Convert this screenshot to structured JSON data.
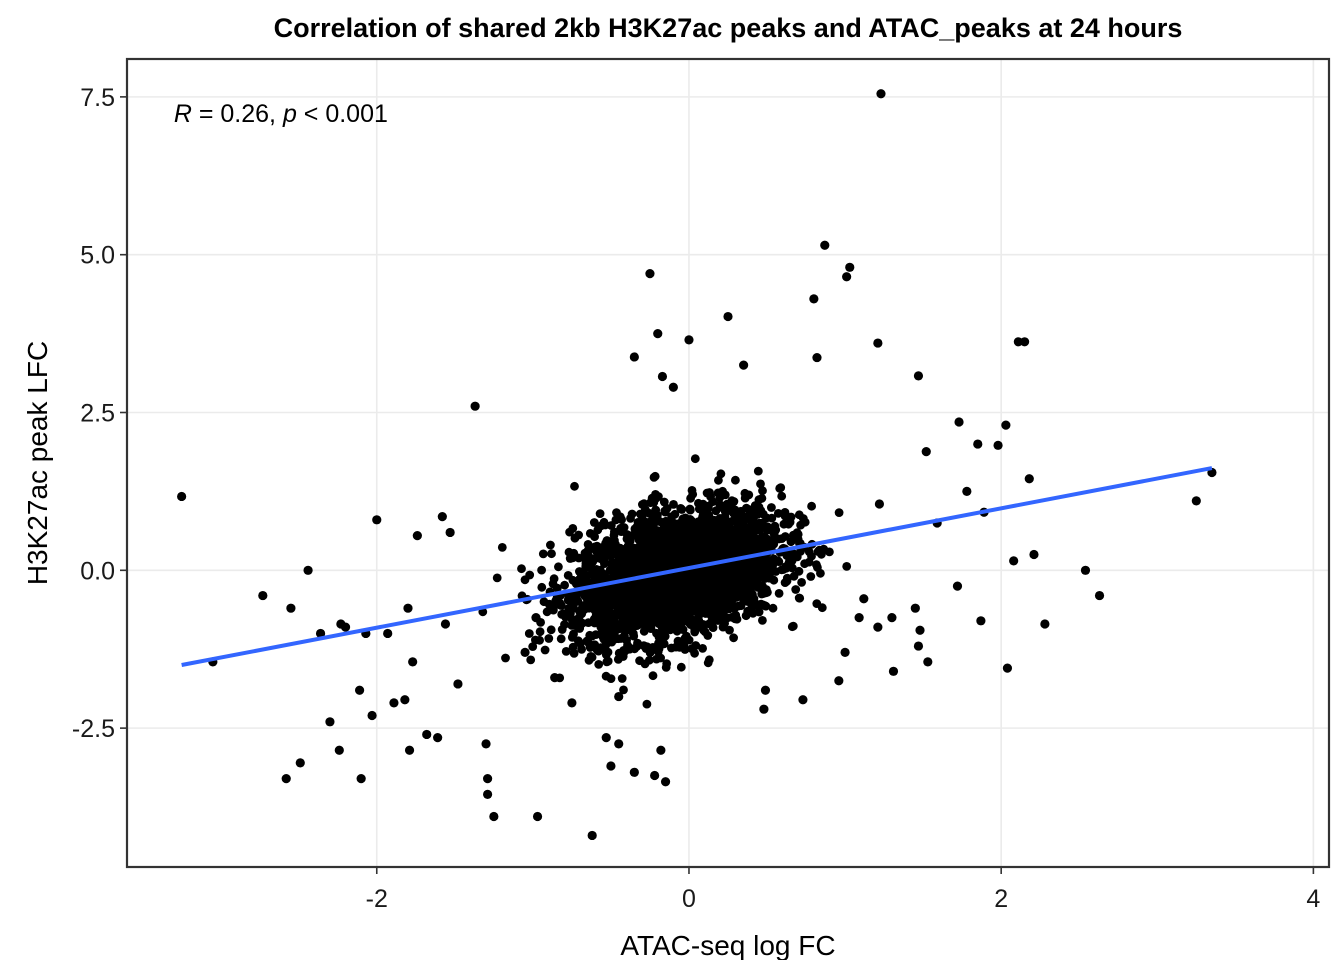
{
  "chart_data": {
    "type": "scatter",
    "title": "Correlation of shared 2kb H3K27ac peaks and ATAC_peaks at 24 hours",
    "xlabel": "ATAC-seq log FC",
    "ylabel": "H3K27ac peak LFC",
    "xlim": [
      -3.6,
      4.1
    ],
    "ylim": [
      -4.7,
      8.1
    ],
    "x_ticks": [
      -2,
      0,
      2,
      4
    ],
    "x_tick_labels": [
      "-2",
      "0",
      "2",
      "4"
    ],
    "y_ticks": [
      -2.5,
      0.0,
      2.5,
      5.0,
      7.5
    ],
    "y_tick_labels": [
      "-2.5",
      "0.0",
      "2.5",
      "5.0",
      "7.5"
    ],
    "grid": true,
    "legend": "none",
    "point_color": "#000000",
    "annotation": {
      "r_symbol": "R",
      "r_text": " = 0.26, ",
      "p_symbol": "p",
      "p_text": " < 0.001",
      "x": -3.3,
      "y": 7.1
    },
    "regression_line": {
      "color": "#3366ff",
      "x": [
        -3.25,
        3.35
      ],
      "y": [
        -1.5,
        1.62
      ]
    },
    "series": [
      {
        "core_cloud": {
          "x_mean": -0.08,
          "y_mean": -0.05,
          "x_sd": 0.33,
          "y_sd": 0.52,
          "count": 3000
        },
        "x": [
          1.23,
          0.87,
          1.03,
          1.01,
          0.8,
          -0.25,
          0.25,
          -0.2,
          0.0,
          1.21,
          2.11,
          2.15,
          0.82,
          1.47,
          -1.37,
          -0.1,
          -0.35,
          -0.17,
          0.35,
          2.03,
          1.73,
          1.85,
          1.98,
          2.18,
          1.52,
          1.22,
          1.59,
          1.78,
          1.89,
          2.21,
          -3.25,
          -2.0,
          -1.53,
          -1.74,
          -1.58,
          -2.44,
          -2.73,
          -2.55,
          -2.36,
          -2.2,
          -1.56,
          -1.8,
          -1.93,
          -2.58,
          -3.05,
          -2.3,
          -2.1,
          -1.89,
          -1.79,
          -1.68,
          -2.49,
          -2.24,
          -2.11,
          -2.07,
          -1.77,
          -1.48,
          -2.23,
          -2.03,
          -1.82,
          -1.61,
          -1.29,
          -1.29,
          -1.25,
          -1.3,
          -0.97,
          -0.62,
          -0.35,
          -0.15,
          -0.22,
          -0.5,
          -0.45,
          -0.18,
          0.48,
          0.73,
          0.96,
          2.54,
          2.63,
          2.04,
          3.25,
          3.35,
          1.87,
          2.08,
          1.72,
          1.45,
          1.48,
          1.53,
          2.28,
          1.31,
          1.09,
          1.21,
          0.49,
          1.0,
          1.12,
          1.3,
          1.47,
          -0.75,
          -0.98,
          -1.05,
          -0.86,
          -0.53,
          -0.45
        ],
        "y": [
          7.55,
          5.15,
          4.8,
          4.65,
          4.3,
          4.7,
          4.02,
          3.75,
          3.65,
          3.6,
          3.62,
          3.62,
          3.37,
          3.08,
          2.6,
          2.9,
          3.38,
          3.07,
          3.25,
          2.3,
          2.35,
          2.0,
          1.98,
          1.45,
          1.88,
          1.05,
          0.75,
          1.25,
          0.92,
          0.25,
          1.17,
          0.8,
          0.6,
          0.55,
          0.85,
          0.0,
          -0.4,
          -0.6,
          -1.0,
          -0.9,
          -0.85,
          -0.6,
          -1.0,
          -3.3,
          -1.45,
          -2.4,
          -3.3,
          -2.1,
          -2.85,
          -2.6,
          -3.05,
          -2.85,
          -1.9,
          -1.0,
          -1.45,
          -1.8,
          -0.85,
          -2.3,
          -2.05,
          -2.65,
          -3.3,
          -3.55,
          -3.9,
          -2.75,
          -3.9,
          -4.2,
          -3.2,
          -3.35,
          -3.25,
          -3.1,
          -2.75,
          -2.85,
          -2.2,
          -2.05,
          -1.75,
          0.0,
          -0.4,
          -1.55,
          1.1,
          1.55,
          -0.8,
          0.15,
          -0.25,
          -0.6,
          -0.95,
          -1.45,
          -0.85,
          -1.6,
          -0.75,
          -0.9,
          -1.9,
          -1.3,
          -0.45,
          -0.75,
          -1.2,
          -2.1,
          -0.75,
          -1.3,
          -1.7,
          -2.65,
          -2.0
        ]
      }
    ]
  }
}
